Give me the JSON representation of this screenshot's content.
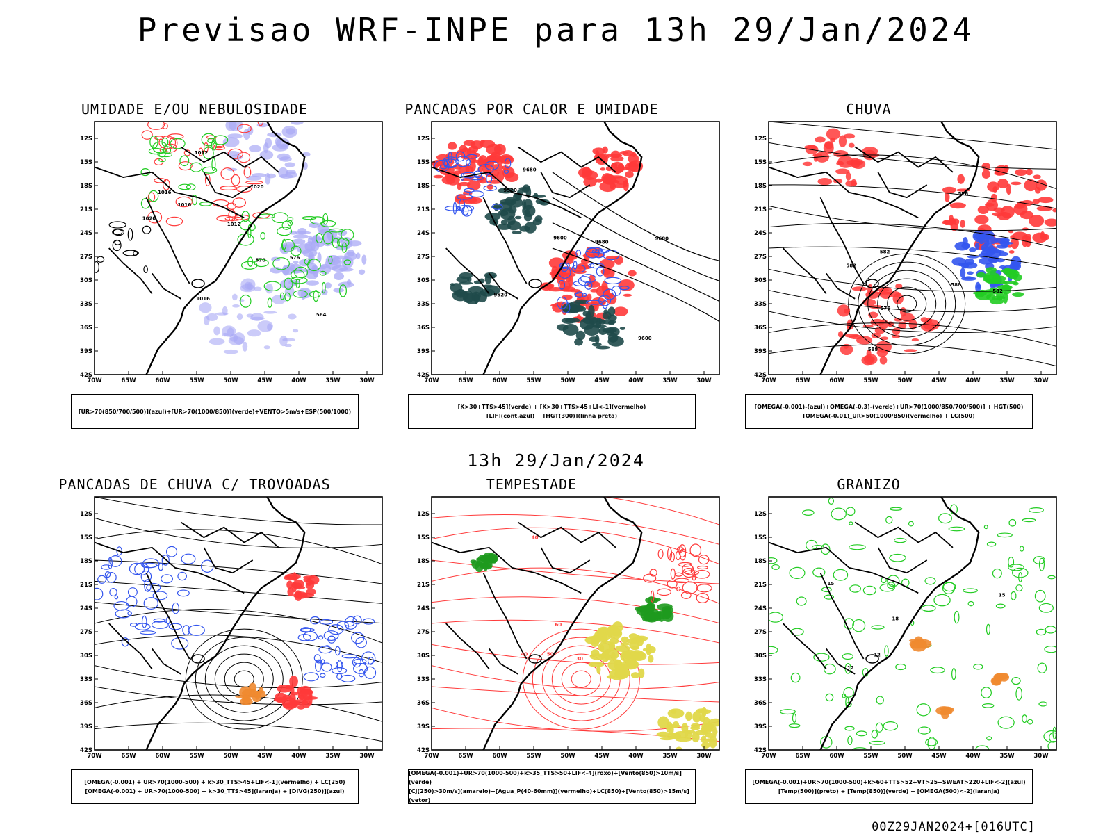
{
  "header": {
    "title": "Previsao WRF-INPE  para 13h 29/Jan/2024"
  },
  "mid_label": "13h 29/Jan/2024",
  "footer": "00Z29JAN2024+[016UTC]",
  "axes": {
    "lat_labels": [
      "12S",
      "15S",
      "18S",
      "21S",
      "24S",
      "27S",
      "30S",
      "33S",
      "36S",
      "39S",
      "42S"
    ],
    "lon_labels": [
      "70W",
      "65W",
      "60W",
      "55W",
      "50W",
      "45W",
      "40W",
      "35W",
      "30W"
    ]
  },
  "panels": [
    {
      "id": "umidade",
      "title": "UMIDADE E/OU NEBULOSIDADE",
      "legend": [
        "[UR>70(850/700/500)](azul)+[UR>70(1000/850)](verde)+VENTO>5m/s+ESP(500/1000)"
      ],
      "contour_labels": [
        "1016",
        "1016",
        "1012",
        "1012",
        "1016",
        "1020",
        "1020",
        "570",
        "564",
        "576"
      ]
    },
    {
      "id": "pancadas-calor",
      "title": "PANCADAS POR CALOR E UMIDADE",
      "legend": [
        "[K>30+TTS>45](verde) + [K>30+TTS>45+LI<-1](vermelho)",
        "[LIF](cont.azul) + [HGT(300)](linha preta)"
      ],
      "contour_labels": [
        "9680",
        "9680",
        "9600",
        "9600",
        "9520",
        "9520",
        "9680"
      ]
    },
    {
      "id": "chuva",
      "title": "CHUVA",
      "legend": [
        "[OMEGA(-0.001)-(azul)+OMEGA(-0.3)-(verde)+UR>70(1000/850/700/500)] + HGT(500)",
        "[OMEGA(-0.01)_UR>50(1000/850)(vermelho) + LC(500)"
      ],
      "contour_labels": [
        "588",
        "588",
        "582",
        "576",
        "582",
        "576",
        "582"
      ]
    },
    {
      "id": "trovoadas",
      "title": "PANCADAS DE CHUVA C/ TROVOADAS",
      "legend": [
        "[OMEGA(-0.001) + UR>70(1000-500) + k>30_TTS>45+LIF<-1](vermelho) + LC(250)",
        "[OMEGA(-0.001) + UR>70(1000-500) + k>30_TTS>45](laranja) + [DIVG(250)](azul)"
      ],
      "contour_labels": []
    },
    {
      "id": "tempestade",
      "title": "TEMPESTADE",
      "legend": [
        "[OMEGA(-0.001)+UR>70(1000-500)+k>35_TTS>50+LIF<-4](roxo)+[Vento(850)>10m/s](verde)",
        "[CJ(250)>30m/s](amarelo)+[Agua_P(40-60mm)](vermelho)+LC(850)+[Vento(850)>15m/s](vetor)"
      ],
      "contour_labels": [
        "50",
        "40",
        "40",
        "60",
        "30"
      ]
    },
    {
      "id": "granizo",
      "title": "GRANIZO",
      "legend": [
        "[OMEGA(-0.001)+UR>70(1000-500)+k>60+TTS>52+VT>25+SWEAT>220+LIF<-2](azul)",
        "[Temp(500)](preto) + [Temp(850)](verde) + [OMEGA(500)<-2](laranja)"
      ],
      "contour_labels": [
        "18",
        "15",
        "12",
        "15",
        "12"
      ]
    }
  ],
  "colors": {
    "red": "#ff3a3a",
    "blue": "#3355ee",
    "green": "#22cc22",
    "lavender": "#a9a9f5",
    "darkteal": "#1f4a4a",
    "yellow": "#e0d84a",
    "orange": "#f08a30"
  }
}
